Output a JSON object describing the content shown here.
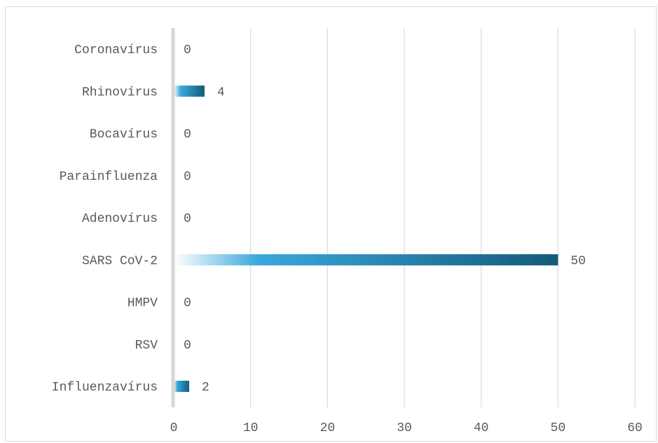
{
  "chart_data": {
    "type": "bar",
    "orientation": "horizontal",
    "categories": [
      "Coronavírus",
      "Rhinovírus",
      "Bocavírus",
      "Parainfluenza",
      "Adenovírus",
      "SARS CoV-2",
      "HMPV",
      "RSV",
      "Influenzavírus"
    ],
    "values": [
      0,
      4,
      0,
      0,
      0,
      50,
      0,
      0,
      2
    ],
    "data_labels": [
      "0",
      "4",
      "0",
      "0",
      "0",
      "50",
      "0",
      "0",
      "2"
    ],
    "xticks": [
      "0",
      "10",
      "20",
      "30",
      "40",
      "50",
      "60"
    ],
    "xlim": [
      0,
      60
    ],
    "grid": true,
    "bar_gradient": [
      "#ffffff",
      "#3aa8dc",
      "#145a7a"
    ],
    "title": "",
    "xlabel": "",
    "ylabel": ""
  }
}
